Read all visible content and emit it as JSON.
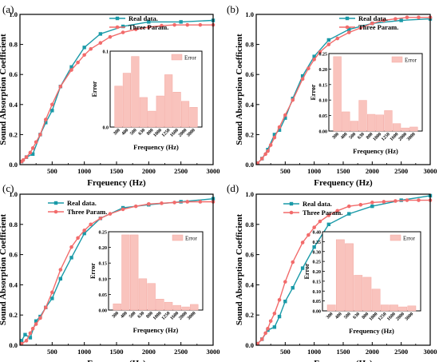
{
  "figure": {
    "colors": {
      "real": "#1a9aa8",
      "three": "#f26b6b",
      "error_bar": "#f9c3bd",
      "error_bar_edge": "#f4a9a2"
    }
  },
  "chart_data": [
    {
      "panel_label": "(a)",
      "type": "line",
      "xlabel": "Frqeuency (Hz)",
      "ylabel": "Sound Absorption Coefficient",
      "xlim": [
        0,
        3000
      ],
      "ylim": [
        0.0,
        1.0
      ],
      "xticks": [
        "500",
        "1000",
        "1500",
        "2000",
        "2500",
        "3000"
      ],
      "yticks": [
        "0.0",
        "0.2",
        "0.4",
        "0.6",
        "0.8",
        "1.0"
      ],
      "legend": {
        "position": "top-right",
        "entries": [
          "Real data.",
          "Three Param."
        ]
      },
      "series": [
        {
          "name": "Real data.",
          "color": "#1a9aa8",
          "marker": "square",
          "x": [
            25,
            100,
            200,
            315,
            400,
            500,
            630,
            800,
            1000,
            1250,
            1600,
            2000,
            2500,
            3000
          ],
          "y": [
            0.02,
            0.05,
            0.07,
            0.2,
            0.28,
            0.36,
            0.52,
            0.65,
            0.78,
            0.87,
            0.92,
            0.95,
            0.95,
            0.96
          ]
        },
        {
          "name": "Three Param.",
          "color": "#f26b6b",
          "marker": "circle",
          "x": [
            25,
            50,
            100,
            160,
            200,
            250,
            315,
            400,
            500,
            630,
            800,
            900,
            1000,
            1100,
            1250,
            1400,
            1600,
            1800,
            2000,
            2200,
            2400,
            2600,
            2800,
            3000
          ],
          "y": [
            0.02,
            0.03,
            0.05,
            0.08,
            0.11,
            0.15,
            0.2,
            0.3,
            0.4,
            0.52,
            0.63,
            0.68,
            0.73,
            0.77,
            0.81,
            0.85,
            0.88,
            0.9,
            0.915,
            0.925,
            0.93,
            0.93,
            0.93,
            0.93
          ]
        }
      ],
      "inset": {
        "type": "bar",
        "xlabel": "Frequency (Hz)",
        "ylabel": "Error",
        "legend": "Error",
        "ylim": [
          0.0,
          0.1
        ],
        "yticks": [
          "0.0",
          "0.1"
        ],
        "categories": [
          "300",
          "400",
          "500",
          "630",
          "800",
          "1000",
          "1250",
          "1600",
          "2000",
          "3000"
        ],
        "values": [
          0.054,
          0.071,
          0.093,
          0.039,
          0.021,
          0.041,
          0.069,
          0.046,
          0.034,
          0.026
        ]
      }
    },
    {
      "panel_label": "(b)",
      "type": "line",
      "xlabel": "Frequency (Hz)",
      "ylabel": "Sound Absorption Coefficient",
      "xlim": [
        0,
        3000
      ],
      "ylim": [
        0.0,
        1.0
      ],
      "xticks": [
        "500",
        "1000",
        "1500",
        "2000",
        "2500",
        "3000"
      ],
      "yticks": [
        "0.0",
        "0.2",
        "0.4",
        "0.6",
        "0.8",
        "1.0"
      ],
      "legend": {
        "position": "top-right",
        "entries": [
          "Real data.",
          "Three Param."
        ]
      },
      "series": [
        {
          "name": "Real data.",
          "color": "#1a9aa8",
          "marker": "square",
          "x": [
            25,
            100,
            200,
            315,
            400,
            500,
            630,
            800,
            1000,
            1250,
            1600,
            2000,
            2500,
            3000
          ],
          "y": [
            0.01,
            0.04,
            0.1,
            0.2,
            0.23,
            0.31,
            0.44,
            0.59,
            0.72,
            0.83,
            0.9,
            0.94,
            0.96,
            0.97
          ]
        },
        {
          "name": "Three Param.",
          "color": "#f26b6b",
          "marker": "circle",
          "x": [
            25,
            100,
            160,
            200,
            250,
            315,
            400,
            500,
            630,
            800,
            900,
            1000,
            1100,
            1250,
            1400,
            1600,
            1800,
            2000,
            2200,
            2400,
            2600,
            2800,
            3000
          ],
          "y": [
            0.01,
            0.04,
            0.07,
            0.09,
            0.13,
            0.18,
            0.25,
            0.33,
            0.43,
            0.57,
            0.64,
            0.7,
            0.75,
            0.8,
            0.84,
            0.88,
            0.91,
            0.94,
            0.96,
            0.97,
            0.98,
            0.98,
            0.98
          ]
        }
      ],
      "inset": {
        "type": "bar",
        "xlabel": "Frequency (Hz)",
        "ylabel": "Error",
        "legend": "Error",
        "ylim": [
          0.0,
          0.25
        ],
        "yticks": [
          "0.00",
          "0.05",
          "0.10",
          "0.15",
          "0.20",
          "0.25"
        ],
        "categories": [
          "300",
          "400",
          "500",
          "630",
          "800",
          "1000",
          "1250",
          "1600",
          "2000",
          "3000"
        ],
        "values": [
          0.24,
          0.062,
          0.032,
          0.099,
          0.054,
          0.052,
          0.066,
          0.024,
          0.01,
          0.013
        ]
      }
    },
    {
      "panel_label": "(c)",
      "type": "line",
      "xlabel": "Frequency (Hz)",
      "ylabel": "Sound Absorption Coefficient",
      "xlim": [
        0,
        3000
      ],
      "ylim": [
        0.0,
        1.0
      ],
      "xticks": [
        "500",
        "1000",
        "1500",
        "2000",
        "2500",
        "3000"
      ],
      "yticks": [
        "0.0",
        "0.2",
        "0.4",
        "0.6",
        "0.8",
        "1.0"
      ],
      "legend": {
        "position": "top-left",
        "entries": [
          "Real data.",
          "Three Param."
        ]
      },
      "series": [
        {
          "name": "Real data.",
          "color": "#1a9aa8",
          "marker": "square",
          "x": [
            25,
            80,
            160,
            250,
            315,
            400,
            500,
            630,
            800,
            1000,
            1250,
            1600,
            2000,
            2500,
            3000
          ],
          "y": [
            0.03,
            0.07,
            0.05,
            0.16,
            0.19,
            0.25,
            0.31,
            0.44,
            0.58,
            0.74,
            0.84,
            0.91,
            0.93,
            0.95,
            0.97
          ]
        },
        {
          "name": "Three Param.",
          "color": "#f26b6b",
          "marker": "circle",
          "x": [
            25,
            100,
            160,
            200,
            250,
            315,
            400,
            500,
            630,
            800,
            900,
            1000,
            1100,
            1250,
            1400,
            1600,
            1800,
            2000,
            2200,
            2400,
            2600,
            2800,
            3000
          ],
          "y": [
            0.01,
            0.03,
            0.08,
            0.11,
            0.14,
            0.18,
            0.25,
            0.35,
            0.5,
            0.65,
            0.71,
            0.76,
            0.8,
            0.84,
            0.87,
            0.9,
            0.92,
            0.935,
            0.94,
            0.945,
            0.95,
            0.95,
            0.95
          ]
        }
      ],
      "inset": {
        "type": "bar",
        "xlabel": "Frequency (Hz)",
        "ylabel": "Error",
        "legend": "Error",
        "ylim": [
          0.0,
          0.25
        ],
        "yticks": [
          "0.00",
          "0.05",
          "0.10",
          "0.15",
          "0.20",
          "0.25"
        ],
        "categories": [
          "300",
          "400",
          "500",
          "630",
          "800",
          "1000",
          "1250",
          "1600",
          "2000",
          "3000"
        ],
        "values": [
          0.02,
          0.24,
          0.24,
          0.1,
          0.085,
          0.035,
          0.025,
          0.015,
          0.01,
          0.018
        ]
      }
    },
    {
      "panel_label": "(d)",
      "type": "line",
      "xlabel": "Frequency (Hz)",
      "ylabel": "Sound Absorption Coefficient",
      "xlim": [
        0,
        3000
      ],
      "ylim": [
        0.0,
        1.0
      ],
      "xticks": [
        "500",
        "1000",
        "1500",
        "2000",
        "2500",
        "3000"
      ],
      "yticks": [
        "0.0",
        "0.2",
        "0.4",
        "0.6",
        "0.8",
        "1.0"
      ],
      "legend": {
        "position": "top-left",
        "entries": [
          "Real data.",
          "Three Param."
        ]
      },
      "series": [
        {
          "name": "Real data.",
          "color": "#1a9aa8",
          "marker": "square",
          "x": [
            25,
            100,
            200,
            315,
            400,
            500,
            630,
            800,
            1000,
            1250,
            1600,
            2000,
            2500,
            3000
          ],
          "y": [
            0.01,
            0.04,
            0.1,
            0.12,
            0.19,
            0.29,
            0.38,
            0.51,
            0.65,
            0.8,
            0.87,
            0.92,
            0.96,
            0.99
          ]
        },
        {
          "name": "Three Param.",
          "color": "#f26b6b",
          "marker": "circle",
          "x": [
            25,
            100,
            160,
            200,
            250,
            315,
            400,
            500,
            630,
            800,
            900,
            1000,
            1100,
            1250,
            1400,
            1600,
            1800,
            2000,
            2200,
            2400,
            2600,
            2800,
            3000
          ],
          "y": [
            0.01,
            0.04,
            0.08,
            0.11,
            0.16,
            0.21,
            0.3,
            0.42,
            0.55,
            0.68,
            0.73,
            0.78,
            0.82,
            0.86,
            0.89,
            0.92,
            0.93,
            0.945,
            0.95,
            0.955,
            0.96,
            0.96,
            0.96
          ]
        }
      ],
      "inset": {
        "type": "bar",
        "xlabel": "Frequency (Hz)",
        "ylabel": "Error",
        "legend": "Error",
        "ylim": [
          0.0,
          0.4
        ],
        "yticks": [
          "0.00",
          "0.05",
          "0.10",
          "0.15",
          "0.20",
          "0.25",
          "0.30",
          "0.35",
          "0.40"
        ],
        "categories": [
          "300",
          "400",
          "500",
          "630",
          "800",
          "1000",
          "1250",
          "1600",
          "2000",
          "3000"
        ],
        "values": [
          0.03,
          0.36,
          0.34,
          0.18,
          0.17,
          0.11,
          0.03,
          0.03,
          0.02,
          0.025
        ]
      }
    }
  ]
}
